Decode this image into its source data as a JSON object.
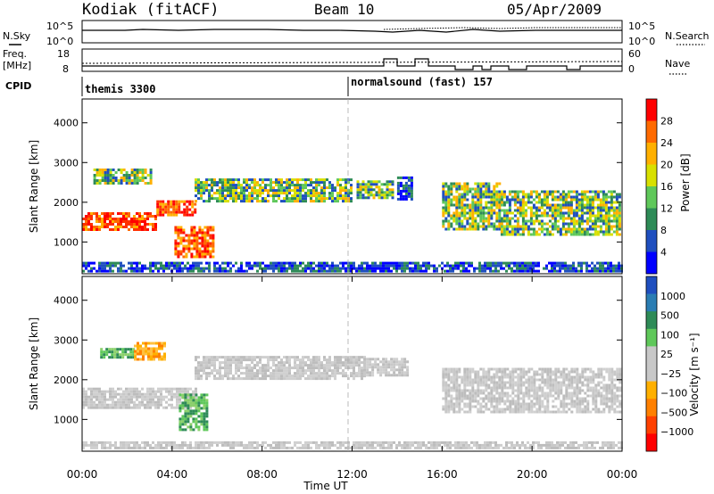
{
  "header": {
    "station": "Kodiak (fitACF)",
    "beam": "Beam 10",
    "date": "05/Apr/2009"
  },
  "panels": {
    "nsky_label": "N.Sky",
    "nsky_ticks": [
      "10^5",
      "10^0"
    ],
    "nsearch_label": "N.Search",
    "nsearch_ticks": [
      "10^5",
      "10^0"
    ],
    "freq_label_1": "Freq.",
    "freq_label_2": "[MHz]",
    "freq_ticks": [
      "18",
      "8"
    ],
    "nave_label": "Nave",
    "nave_ticks": [
      "60",
      "0"
    ],
    "cpid_label": "CPID",
    "cpid_1": "themis 3300",
    "cpid_2": "normalsound (fast) 157"
  },
  "chart_data": [
    {
      "type": "heatmap",
      "name": "power",
      "ylabel": "Slant Range [km]",
      "ylim": [
        200,
        4600
      ],
      "yticks": [
        "1000",
        "2000",
        "3000",
        "4000"
      ],
      "yticks_values": [
        1000,
        2000,
        3000,
        4000
      ],
      "xlim": [
        0,
        24
      ],
      "colorbar_label": "Power [dB]",
      "colorbar_ticks": [
        "28",
        "24",
        "20",
        "16",
        "12",
        "8",
        "4"
      ],
      "colorbar_colors": [
        "#ff0000",
        "#ff6a00",
        "#ffb000",
        "#d8e000",
        "#5fc85a",
        "#2e8b57",
        "#1f4fbf",
        "#0000ff"
      ],
      "bands": [
        {
          "x0": 0.0,
          "x1": 3.3,
          "y0": 1300,
          "y1": 1750,
          "cls": "high"
        },
        {
          "x0": 0.5,
          "x1": 3.0,
          "y0": 2500,
          "y1": 2850,
          "cls": "med"
        },
        {
          "x0": 3.3,
          "x1": 5.0,
          "y0": 1650,
          "y1": 2050,
          "cls": "high"
        },
        {
          "x0": 4.1,
          "x1": 5.8,
          "y0": 650,
          "y1": 1400,
          "cls": "high"
        },
        {
          "x0": 5.0,
          "x1": 12.0,
          "y0": 2000,
          "y1": 2600,
          "cls": "med"
        },
        {
          "x0": 12.2,
          "x1": 13.8,
          "y0": 2100,
          "y1": 2550,
          "cls": "med"
        },
        {
          "x0": 14.0,
          "x1": 14.6,
          "y0": 2100,
          "y1": 2650,
          "cls": "low"
        },
        {
          "x0": 16.0,
          "x1": 18.6,
          "y0": 1300,
          "y1": 2500,
          "cls": "med"
        },
        {
          "x0": 18.6,
          "x1": 23.9,
          "y0": 1200,
          "y1": 2300,
          "cls": "med"
        },
        {
          "x0": 0.0,
          "x1": 24.0,
          "y0": 250,
          "y1": 500,
          "cls": "low"
        }
      ]
    },
    {
      "type": "heatmap",
      "name": "velocity",
      "ylabel": "Slant Range [km]",
      "ylim": [
        200,
        4600
      ],
      "yticks": [
        "1000",
        "2000",
        "3000",
        "4000"
      ],
      "yticks_values": [
        1000,
        2000,
        3000,
        4000
      ],
      "xlim": [
        0,
        24
      ],
      "xticks": [
        "00:00",
        "04:00",
        "08:00",
        "12:00",
        "16:00",
        "20:00",
        "00:00"
      ],
      "xticks_values": [
        0,
        4,
        8,
        12,
        16,
        20,
        24
      ],
      "xlabel": "Time UT",
      "colorbar_label": "Velocity [m s⁻¹]",
      "colorbar_ticks": [
        "1000",
        "500",
        "100",
        "25",
        "−25",
        "−100",
        "−500",
        "−1000"
      ],
      "colorbar_colors": [
        "#1f4fbf",
        "#2a7db3",
        "#2e8b57",
        "#5fc85a",
        "#c8c8c8",
        "#c8c8c8",
        "#ffb000",
        "#ff8000",
        "#ff4000",
        "#ff0000"
      ],
      "bands": [
        {
          "x0": 0.0,
          "x1": 5.0,
          "y0": 1300,
          "y1": 1800,
          "cls": "gray"
        },
        {
          "x0": 0.8,
          "x1": 2.3,
          "y0": 2550,
          "y1": 2800,
          "cls": "green"
        },
        {
          "x0": 2.3,
          "x1": 3.7,
          "y0": 2500,
          "y1": 2950,
          "cls": "orange"
        },
        {
          "x0": 4.3,
          "x1": 5.5,
          "y0": 750,
          "y1": 1650,
          "cls": "green"
        },
        {
          "x0": 5.0,
          "x1": 12.5,
          "y0": 2000,
          "y1": 2600,
          "cls": "gray"
        },
        {
          "x0": 12.5,
          "x1": 14.5,
          "y0": 2100,
          "y1": 2550,
          "cls": "gray"
        },
        {
          "x0": 16.0,
          "x1": 23.9,
          "y0": 1200,
          "y1": 2300,
          "cls": "gray"
        },
        {
          "x0": 0.0,
          "x1": 24.0,
          "y0": 250,
          "y1": 450,
          "cls": "gray"
        }
      ]
    }
  ]
}
